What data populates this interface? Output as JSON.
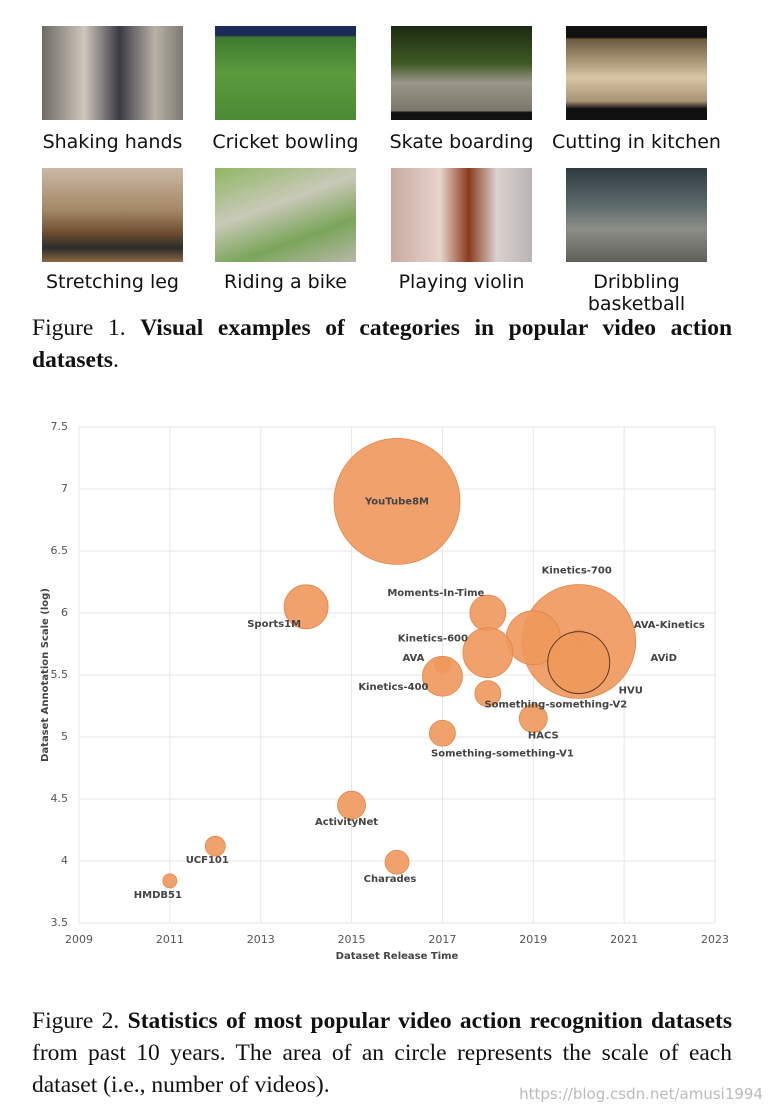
{
  "figure1": {
    "items": [
      "Shaking hands",
      "Cricket bowling",
      "Skate boarding",
      "Cutting in kitchen",
      "Stretching leg",
      "Riding a bike",
      "Playing violin",
      "Dribbling basketball"
    ],
    "caption": {
      "label": "Figure 1.",
      "bold": "Visual examples of categories in popular video action datasets",
      "rest": "."
    }
  },
  "chart_data": {
    "type": "scatter",
    "x_label": "Dataset Release Time",
    "y_label": "Dataset Annotation Scale (log)",
    "xlim": [
      2009,
      2023
    ],
    "ylim": [
      3.5,
      7.5
    ],
    "xticks": [
      2009,
      2011,
      2013,
      2015,
      2017,
      2019,
      2021,
      2023
    ],
    "yticks": [
      3.5,
      4,
      4.5,
      5,
      5.5,
      6,
      6.5,
      7,
      7.5
    ],
    "grid": true,
    "color": "#f0985c",
    "names": [
      "YouTube8M",
      "Sports1M",
      "Moments-In-Time",
      "Kinetics-700",
      "AVA-Kinetics",
      "Kinetics-600",
      "AVA",
      "AViD",
      "HVU",
      "Kinetics-400",
      "Something-something-V2",
      "HACS",
      "Something-something-V1",
      "ActivityNet",
      "UCF101",
      "Charades",
      "HMDB51"
    ],
    "x": [
      2016,
      2014,
      2018,
      2020,
      2019,
      2018,
      2017,
      2020,
      2020,
      2017,
      2018,
      2019,
      2017,
      2015,
      2012,
      2016,
      2011
    ],
    "y": [
      6.9,
      6.05,
      6.0,
      5.77,
      5.8,
      5.68,
      5.58,
      5.8,
      5.6,
      5.49,
      5.35,
      5.15,
      5.03,
      4.45,
      4.12,
      3.99,
      3.84
    ],
    "sizes": [
      3969,
      484,
      324,
      3249,
      729,
      625,
      64,
      64,
      961,
      400,
      169,
      196,
      169,
      196,
      100,
      144,
      49
    ]
  },
  "figure2_caption": {
    "label": "Figure 2.",
    "bold": "Statistics of most popular video action recognition datasets",
    "rest": " from past 10 years.  The area of an circle represents the scale of each dataset (i.e., number of videos)."
  },
  "watermark": "https://blog.csdn.net/amusi1994"
}
